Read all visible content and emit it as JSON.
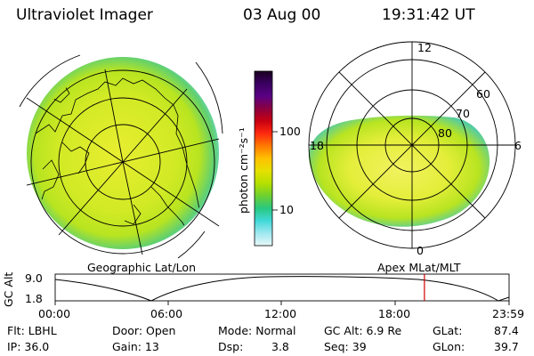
{
  "header": {
    "instrument": "Ultraviolet Imager",
    "date": "03 Aug 00",
    "time": "19:31:42 UT"
  },
  "colorbar": {
    "ticks": [
      "100",
      "10"
    ],
    "unit_label": "photon cm⁻²s⁻¹",
    "palette": [
      "#1a0020",
      "#3a0060",
      "#5a0085",
      "#8a0040",
      "#c80010",
      "#ff2a10",
      "#ff7a00",
      "#ffc000",
      "#e6e000",
      "#b5e000",
      "#6fd030",
      "#28c880",
      "#40d8d8",
      "#a0e8f0",
      "#e8f8f8"
    ]
  },
  "left_map": {
    "caption": "Geographic Lat/Lon"
  },
  "right_map": {
    "caption": "Apex MLat/MLT",
    "mlt_labels": [
      "12",
      "18",
      "6",
      "0"
    ],
    "lat_labels": [
      "60",
      "70",
      "80"
    ]
  },
  "altitude_plot": {
    "ylabel": "GC Alt",
    "yticks": [
      "9.0",
      "1.8"
    ],
    "xticks": [
      "00:00",
      "06:00",
      "12:00",
      "18:00",
      "23:59"
    ],
    "current_fraction": 0.8135
  },
  "footer": {
    "flt": "Flt: LBHL",
    "ip": "IP: 36.0",
    "door": "Door: Open",
    "gain": "Gain: 13",
    "mode": "Mode: Normal",
    "dsp_label": "Dsp:",
    "dsp_value": "3.8",
    "gc_alt": "GC Alt: 6.9 Re",
    "seq": "Seq: 39",
    "glat_label": "GLat:",
    "glat_value": "87.4",
    "glon_label": "GLon:",
    "glon_value": "39.7"
  }
}
